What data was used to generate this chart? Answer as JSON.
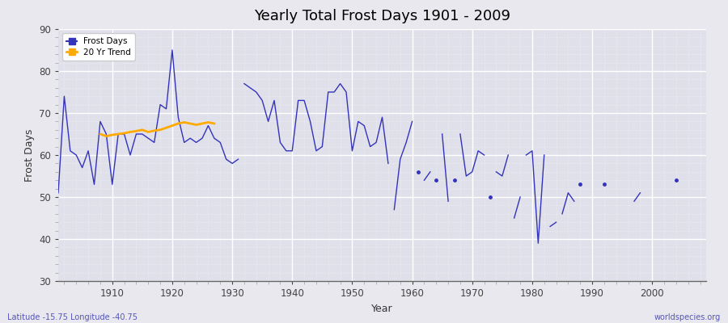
{
  "title": "Yearly Total Frost Days 1901 - 2009",
  "xlabel": "Year",
  "ylabel": "Frost Days",
  "lat_lon_label": "Latitude -15.75 Longitude -40.75",
  "watermark": "worldspecies.org",
  "ylim": [
    30,
    90
  ],
  "xlim": [
    1901,
    2009
  ],
  "yticks": [
    30,
    40,
    50,
    60,
    70,
    80,
    90
  ],
  "xticks": [
    1910,
    1920,
    1930,
    1940,
    1950,
    1960,
    1970,
    1980,
    1990,
    2000
  ],
  "line_color": "#3333bb",
  "trend_color": "#ffaa00",
  "bg_color": "#e8e8ee",
  "plot_bg_color": "#e0e0ea",
  "segments": [
    [
      [
        1901,
        51
      ],
      [
        1902,
        74
      ],
      [
        1903,
        61
      ],
      [
        1904,
        60
      ],
      [
        1905,
        57
      ],
      [
        1906,
        61
      ],
      [
        1907,
        53
      ],
      [
        1908,
        68
      ],
      [
        1909,
        65
      ],
      [
        1910,
        53
      ],
      [
        1911,
        65
      ],
      [
        1912,
        65
      ],
      [
        1913,
        60
      ],
      [
        1914,
        65
      ],
      [
        1915,
        65
      ],
      [
        1916,
        64
      ],
      [
        1917,
        63
      ],
      [
        1918,
        72
      ],
      [
        1919,
        71
      ],
      [
        1920,
        85
      ],
      [
        1921,
        69
      ],
      [
        1922,
        63
      ],
      [
        1923,
        64
      ],
      [
        1924,
        63
      ],
      [
        1925,
        64
      ],
      [
        1926,
        67
      ],
      [
        1927,
        64
      ],
      [
        1928,
        63
      ],
      [
        1929,
        59
      ],
      [
        1930,
        58
      ],
      [
        1931,
        59
      ]
    ],
    [
      [
        1932,
        77
      ],
      [
        1933,
        76
      ],
      [
        1934,
        75
      ],
      [
        1935,
        73
      ],
      [
        1936,
        68
      ],
      [
        1937,
        73
      ],
      [
        1938,
        63
      ],
      [
        1939,
        61
      ],
      [
        1940,
        61
      ],
      [
        1941,
        73
      ],
      [
        1942,
        73
      ],
      [
        1943,
        68
      ],
      [
        1944,
        61
      ],
      [
        1945,
        62
      ],
      [
        1946,
        75
      ],
      [
        1947,
        75
      ],
      [
        1948,
        77
      ],
      [
        1949,
        75
      ],
      [
        1950,
        61
      ],
      [
        1951,
        68
      ],
      [
        1952,
        67
      ],
      [
        1953,
        62
      ],
      [
        1954,
        63
      ],
      [
        1955,
        69
      ],
      [
        1956,
        58
      ]
    ],
    [
      [
        1957,
        47
      ],
      [
        1958,
        59
      ],
      [
        1959,
        63
      ],
      [
        1960,
        68
      ]
    ],
    [
      [
        1961,
        56
      ]
    ],
    [
      [
        1962,
        54
      ],
      [
        1963,
        56
      ]
    ],
    [
      [
        1964,
        54
      ]
    ],
    [
      [
        1965,
        65
      ],
      [
        1966,
        49
      ]
    ],
    [
      [
        1967,
        54
      ]
    ],
    [
      [
        1968,
        65
      ],
      [
        1969,
        55
      ],
      [
        1970,
        56
      ],
      [
        1971,
        61
      ],
      [
        1972,
        60
      ]
    ],
    [
      [
        1973,
        50
      ]
    ],
    [
      [
        1974,
        56
      ],
      [
        1975,
        55
      ],
      [
        1976,
        60
      ]
    ],
    [
      [
        1977,
        45
      ],
      [
        1978,
        50
      ]
    ],
    [
      [
        1979,
        60
      ],
      [
        1980,
        61
      ],
      [
        1981,
        39
      ],
      [
        1982,
        60
      ]
    ],
    [
      [
        1983,
        43
      ],
      [
        1984,
        44
      ]
    ],
    [
      [
        1985,
        46
      ],
      [
        1986,
        51
      ],
      [
        1987,
        49
      ]
    ],
    [
      [
        1988,
        53
      ]
    ],
    [
      [
        1992,
        53
      ]
    ],
    [
      [
        1997,
        49
      ],
      [
        1998,
        51
      ]
    ],
    [
      [
        2004,
        54
      ]
    ]
  ],
  "trend_years": [
    1908,
    1909,
    1910,
    1911,
    1912,
    1913,
    1914,
    1915,
    1916,
    1917,
    1918,
    1919,
    1920,
    1921,
    1922,
    1923,
    1924,
    1925,
    1926,
    1927
  ],
  "trend_values": [
    65.0,
    64.5,
    64.8,
    65.0,
    65.2,
    65.5,
    65.7,
    66.0,
    65.5,
    65.8,
    66.0,
    66.5,
    67.0,
    67.5,
    67.8,
    67.5,
    67.2,
    67.5,
    67.8,
    67.5
  ]
}
